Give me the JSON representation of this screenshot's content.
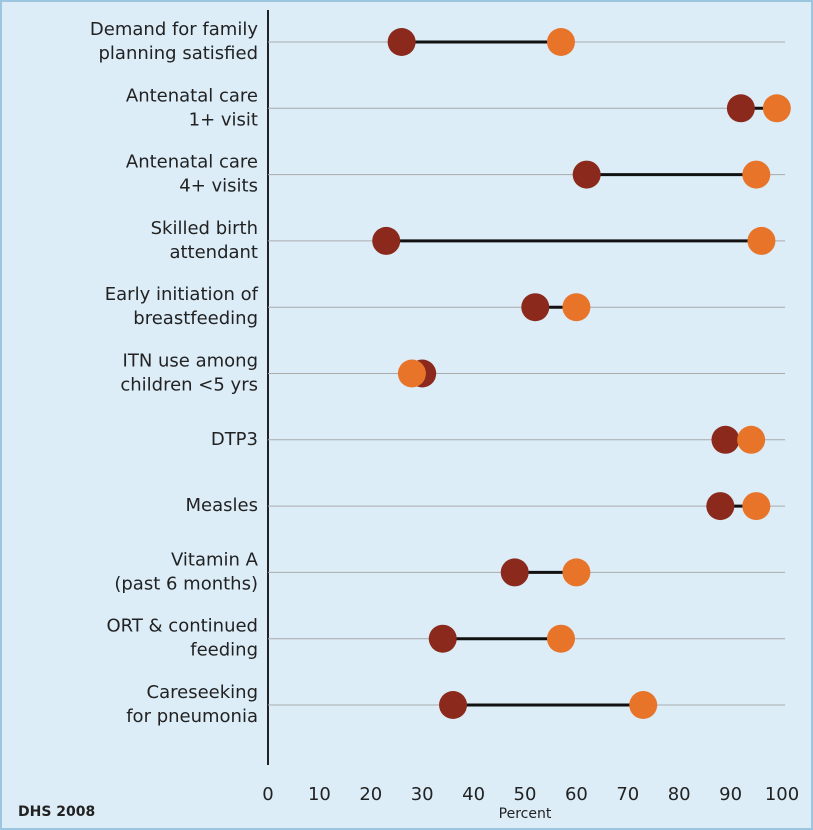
{
  "chart_data": {
    "type": "dumbbell",
    "categories": [
      [
        "Demand for family",
        "planning satisfied"
      ],
      [
        "Antenatal care",
        "1+ visit"
      ],
      [
        "Antenatal care",
        "4+ visits"
      ],
      [
        "Skilled birth",
        "attendant"
      ],
      [
        "Early initiation of",
        "breastfeeding"
      ],
      [
        "ITN use among",
        "children <5 yrs"
      ],
      [
        "DTP3"
      ],
      [
        "Measles"
      ],
      [
        "Vitamin A",
        "(past 6 months)"
      ],
      [
        "ORT & continued",
        "feeding"
      ],
      [
        "Careseeking",
        "for pneumonia"
      ]
    ],
    "series": [
      {
        "color": "#8b2a1c",
        "values": [
          26,
          92,
          62,
          23,
          52,
          30,
          89,
          88,
          48,
          34,
          36
        ]
      },
      {
        "color": "#e8742a",
        "values": [
          57,
          99,
          95,
          96,
          60,
          28,
          94,
          95,
          60,
          57,
          73
        ]
      }
    ],
    "xlim": [
      0,
      100
    ],
    "xticks": [
      0,
      10,
      20,
      30,
      40,
      50,
      60,
      70,
      80,
      90,
      100
    ],
    "xlabel": "Percent",
    "source": "DHS 2008",
    "grid": true
  }
}
